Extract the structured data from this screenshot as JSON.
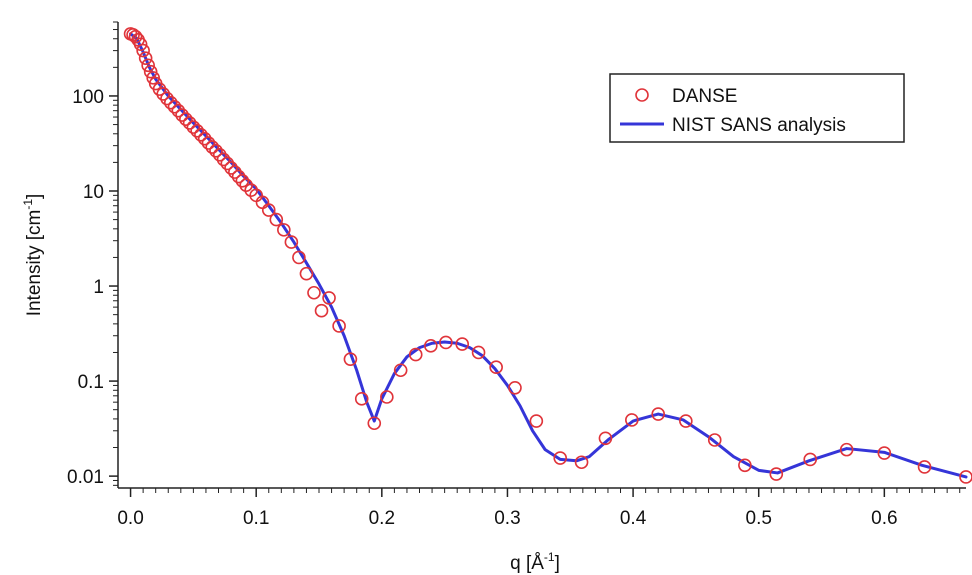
{
  "chart_data": {
    "type": "scatter",
    "title": "",
    "xlabel": "q [Å",
    "xlabel_sup": "-1",
    "xlabel_end": "]",
    "ylabel": "Intensity [cm",
    "ylabel_sup": "-1",
    "ylabel_end": "]",
    "xlim": [
      -0.01,
      0.665
    ],
    "ylim": [
      0.0075,
      600
    ],
    "yscale": "log",
    "grid": false,
    "legend_position": "top-right",
    "x_ticks": [
      {
        "value": 0.0,
        "label": "0.0"
      },
      {
        "value": 0.1,
        "label": "0.1"
      },
      {
        "value": 0.2,
        "label": "0.2"
      },
      {
        "value": 0.3,
        "label": "0.3"
      },
      {
        "value": 0.4,
        "label": "0.4"
      },
      {
        "value": 0.5,
        "label": "0.5"
      },
      {
        "value": 0.6,
        "label": "0.6"
      }
    ],
    "y_ticks": [
      {
        "value": 0.01,
        "label": "0.01"
      },
      {
        "value": 0.1,
        "label": "0.1"
      },
      {
        "value": 1,
        "label": "1"
      },
      {
        "value": 10,
        "label": "10"
      },
      {
        "value": 100,
        "label": "100"
      }
    ],
    "series": [
      {
        "name": "DANSE",
        "kind": "markers",
        "marker": "open-circle",
        "color": "#e0343a",
        "x": [
          0.0,
          0.002,
          0.004,
          0.006,
          0.008,
          0.01,
          0.012,
          0.014,
          0.016,
          0.018,
          0.02,
          0.023,
          0.026,
          0.029,
          0.032,
          0.035,
          0.038,
          0.041,
          0.044,
          0.047,
          0.05,
          0.053,
          0.056,
          0.059,
          0.062,
          0.065,
          0.068,
          0.071,
          0.074,
          0.077,
          0.08,
          0.083,
          0.086,
          0.089,
          0.092,
          0.096,
          0.1,
          0.105,
          0.11,
          0.116,
          0.122,
          0.128,
          0.134,
          0.14,
          0.146,
          0.152,
          0.158,
          0.166,
          0.175,
          0.184,
          0.194,
          0.204,
          0.215,
          0.227,
          0.239,
          0.251,
          0.264,
          0.277,
          0.291,
          0.306,
          0.323,
          0.342,
          0.359,
          0.378,
          0.399,
          0.42,
          0.442,
          0.465,
          0.489,
          0.514,
          0.541,
          0.57,
          0.6,
          0.632,
          0.665
        ],
        "y": [
          450,
          440,
          420,
          390,
          350,
          300,
          250,
          210,
          180,
          155,
          135,
          118,
          105,
          94,
          85,
          77,
          70,
          63,
          57,
          52,
          47,
          43,
          39,
          35.5,
          32,
          29,
          26.5,
          24,
          21.5,
          19.5,
          17.5,
          15.8,
          14.2,
          12.8,
          11.5,
          10.2,
          9.0,
          7.6,
          6.3,
          5.0,
          3.9,
          2.9,
          2.0,
          1.35,
          0.85,
          0.55,
          0.75,
          0.38,
          0.17,
          0.065,
          0.036,
          0.068,
          0.13,
          0.19,
          0.235,
          0.255,
          0.245,
          0.2,
          0.14,
          0.085,
          0.038,
          0.0155,
          0.014,
          0.025,
          0.039,
          0.045,
          0.038,
          0.024,
          0.013,
          0.0105,
          0.015,
          0.019,
          0.0175,
          0.0125,
          0.0098
        ]
      },
      {
        "name": "NIST SANS analysis",
        "kind": "line",
        "color": "#3535d8",
        "x": [
          0.0,
          0.005,
          0.01,
          0.015,
          0.02,
          0.03,
          0.04,
          0.05,
          0.06,
          0.07,
          0.08,
          0.09,
          0.1,
          0.11,
          0.12,
          0.13,
          0.14,
          0.15,
          0.16,
          0.17,
          0.18,
          0.188,
          0.194,
          0.2,
          0.21,
          0.22,
          0.23,
          0.24,
          0.25,
          0.26,
          0.27,
          0.28,
          0.29,
          0.3,
          0.31,
          0.32,
          0.33,
          0.342,
          0.355,
          0.365,
          0.38,
          0.4,
          0.42,
          0.44,
          0.46,
          0.48,
          0.5,
          0.515,
          0.54,
          0.57,
          0.6,
          0.63,
          0.665
        ],
        "y": [
          450,
          400,
          290,
          200,
          150,
          100,
          72,
          52,
          38,
          27.5,
          20,
          14.3,
          10.5,
          7.0,
          4.6,
          2.9,
          1.75,
          1.05,
          0.6,
          0.3,
          0.13,
          0.06,
          0.038,
          0.065,
          0.12,
          0.18,
          0.225,
          0.25,
          0.258,
          0.25,
          0.225,
          0.185,
          0.135,
          0.09,
          0.055,
          0.03,
          0.019,
          0.015,
          0.0145,
          0.016,
          0.024,
          0.038,
          0.045,
          0.039,
          0.026,
          0.016,
          0.0115,
          0.0108,
          0.0145,
          0.0195,
          0.0178,
          0.013,
          0.0098
        ]
      }
    ]
  }
}
